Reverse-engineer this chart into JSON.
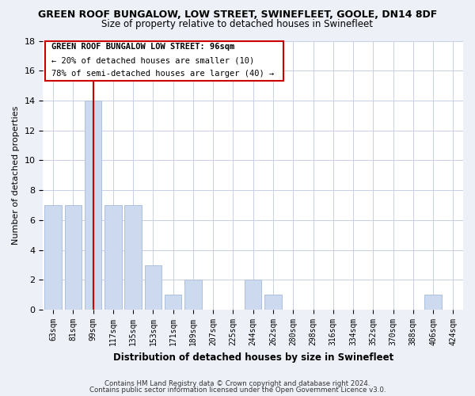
{
  "title": "GREEN ROOF BUNGALOW, LOW STREET, SWINEFLEET, GOOLE, DN14 8DF",
  "subtitle": "Size of property relative to detached houses in Swinefleet",
  "xlabel": "Distribution of detached houses by size in Swinefleet",
  "ylabel": "Number of detached properties",
  "bins": [
    "63sqm",
    "81sqm",
    "99sqm",
    "117sqm",
    "135sqm",
    "153sqm",
    "171sqm",
    "189sqm",
    "207sqm",
    "225sqm",
    "244sqm",
    "262sqm",
    "280sqm",
    "298sqm",
    "316sqm",
    "334sqm",
    "352sqm",
    "370sqm",
    "388sqm",
    "406sqm",
    "424sqm"
  ],
  "values": [
    7,
    7,
    14,
    7,
    7,
    3,
    1,
    2,
    0,
    0,
    2,
    1,
    0,
    0,
    0,
    0,
    0,
    0,
    0,
    1,
    0
  ],
  "bar_color": "#cdd9ee",
  "bar_edge_color": "#adc0de",
  "vline_x_index": 2,
  "vline_color": "#cc0000",
  "ylim": [
    0,
    18
  ],
  "yticks": [
    0,
    2,
    4,
    6,
    8,
    10,
    12,
    14,
    16,
    18
  ],
  "annotation_title": "GREEN ROOF BUNGALOW LOW STREET: 96sqm",
  "annotation_line1": "← 20% of detached houses are smaller (10)",
  "annotation_line2": "78% of semi-detached houses are larger (40) →",
  "footer1": "Contains HM Land Registry data © Crown copyright and database right 2024.",
  "footer2": "Contains public sector information licensed under the Open Government Licence v3.0.",
  "background_color": "#eef0f8",
  "plot_background": "#ffffff",
  "grid_color": "#c8cfe8"
}
